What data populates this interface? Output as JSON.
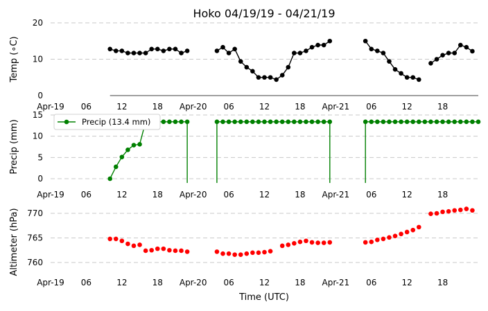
{
  "chart_data": {
    "title": "Hoko 04/19/19 - 04/21/19",
    "xlabel": "Time (UTC)",
    "x_ticks": [
      "Apr-19",
      "06",
      "12",
      "18",
      "Apr-20",
      "06",
      "12",
      "18",
      "Apr-21",
      "06",
      "12",
      "18"
    ],
    "x_range_hours": [
      0,
      72
    ],
    "panels": [
      {
        "type": "line",
        "ylabel": "Temp (∘C)",
        "ylim": [
          0,
          20
        ],
        "yticks": [
          "0",
          "10",
          "20"
        ],
        "color": "#000000",
        "grid": true,
        "segments": [
          [
            [
              10,
              12.8
            ],
            [
              11,
              12.3
            ],
            [
              12,
              12.3
            ],
            [
              13,
              11.7
            ],
            [
              14,
              11.7
            ],
            [
              15,
              11.7
            ],
            [
              16,
              11.7
            ],
            [
              17,
              12.8
            ],
            [
              18,
              12.8
            ],
            [
              19,
              12.3
            ],
            [
              20,
              12.8
            ],
            [
              21,
              12.8
            ],
            [
              22,
              11.7
            ],
            [
              23,
              12.3
            ]
          ],
          [
            [
              28,
              12.3
            ],
            [
              29,
              13.3
            ],
            [
              30,
              11.7
            ],
            [
              31,
              12.8
            ],
            [
              32,
              9.4
            ],
            [
              33,
              7.8
            ],
            [
              34,
              6.7
            ],
            [
              35,
              5.0
            ],
            [
              36,
              5.0
            ],
            [
              37,
              5.0
            ],
            [
              38,
              4.4
            ],
            [
              39,
              5.6
            ],
            [
              40,
              7.8
            ],
            [
              41,
              11.7
            ],
            [
              42,
              11.7
            ],
            [
              43,
              12.3
            ],
            [
              44,
              13.3
            ],
            [
              45,
              13.9
            ],
            [
              46,
              13.9
            ],
            [
              47,
              15.0
            ]
          ],
          [
            [
              53,
              15.0
            ],
            [
              54,
              12.8
            ],
            [
              55,
              12.3
            ],
            [
              56,
              11.7
            ],
            [
              57,
              9.4
            ],
            [
              58,
              7.2
            ],
            [
              59,
              6.1
            ],
            [
              60,
              5.0
            ],
            [
              61,
              5.0
            ],
            [
              62,
              4.4
            ]
          ],
          [
            [
              64,
              8.9
            ],
            [
              65,
              10.0
            ],
            [
              66,
              11.1
            ],
            [
              67,
              11.7
            ],
            [
              68,
              11.7
            ],
            [
              69,
              13.9
            ],
            [
              70,
              13.3
            ],
            [
              71,
              12.2
            ]
          ]
        ]
      },
      {
        "type": "line",
        "ylabel": "Precip (mm)",
        "ylim": [
          -1,
          15
        ],
        "yticks": [
          "0",
          "5",
          "10",
          "15"
        ],
        "color": "#008000",
        "grid": true,
        "legend": "Precip (13.4 mm)",
        "legend_position": "top-left",
        "segments": [
          [
            [
              10,
              0.0
            ],
            [
              11,
              2.8
            ],
            [
              12,
              5.1
            ],
            [
              13,
              6.8
            ],
            [
              14,
              7.9
            ],
            [
              15,
              8.1
            ],
            [
              16,
              13.4
            ],
            [
              17,
              13.4
            ],
            [
              18,
              13.4
            ],
            [
              19,
              13.4
            ],
            [
              20,
              13.4
            ],
            [
              21,
              13.4
            ],
            [
              22,
              13.4
            ],
            [
              23,
              13.4
            ],
            [
              23,
              -1
            ]
          ],
          [
            [
              28,
              -1
            ],
            [
              28,
              13.4
            ],
            [
              29,
              13.4
            ],
            [
              30,
              13.4
            ],
            [
              31,
              13.4
            ],
            [
              32,
              13.4
            ],
            [
              33,
              13.4
            ],
            [
              34,
              13.4
            ],
            [
              35,
              13.4
            ],
            [
              36,
              13.4
            ],
            [
              37,
              13.4
            ],
            [
              38,
              13.4
            ],
            [
              39,
              13.4
            ],
            [
              40,
              13.4
            ],
            [
              41,
              13.4
            ],
            [
              42,
              13.4
            ],
            [
              43,
              13.4
            ],
            [
              44,
              13.4
            ],
            [
              45,
              13.4
            ],
            [
              46,
              13.4
            ],
            [
              47,
              13.4
            ],
            [
              47,
              -1
            ]
          ],
          [
            [
              53,
              -1
            ],
            [
              53,
              13.4
            ],
            [
              54,
              13.4
            ],
            [
              55,
              13.4
            ],
            [
              56,
              13.4
            ],
            [
              57,
              13.4
            ],
            [
              58,
              13.4
            ],
            [
              59,
              13.4
            ],
            [
              60,
              13.4
            ],
            [
              61,
              13.4
            ],
            [
              62,
              13.4
            ],
            [
              63,
              13.4
            ],
            [
              64,
              13.4
            ],
            [
              65,
              13.4
            ],
            [
              66,
              13.4
            ],
            [
              67,
              13.4
            ],
            [
              68,
              13.4
            ],
            [
              69,
              13.4
            ],
            [
              70,
              13.4
            ],
            [
              71,
              13.4
            ],
            [
              72,
              13.4
            ]
          ]
        ]
      },
      {
        "type": "scatter",
        "ylabel": "Altimeter (hPa)",
        "ylim": [
          757,
          772.5
        ],
        "yticks": [
          "760",
          "765",
          "770"
        ],
        "color": "#ff0000",
        "grid": true,
        "points": [
          [
            10,
            764.8
          ],
          [
            11,
            764.8
          ],
          [
            12,
            764.4
          ],
          [
            13,
            763.8
          ],
          [
            14,
            763.4
          ],
          [
            15,
            763.6
          ],
          [
            16,
            762.4
          ],
          [
            17,
            762.5
          ],
          [
            18,
            762.8
          ],
          [
            19,
            762.8
          ],
          [
            20,
            762.5
          ],
          [
            21,
            762.4
          ],
          [
            22,
            762.4
          ],
          [
            23,
            762.2
          ],
          [
            28,
            762.2
          ],
          [
            29,
            761.8
          ],
          [
            30,
            761.8
          ],
          [
            31,
            761.6
          ],
          [
            32,
            761.6
          ],
          [
            33,
            761.8
          ],
          [
            34,
            762.0
          ],
          [
            35,
            762.0
          ],
          [
            36,
            762.1
          ],
          [
            37,
            762.3
          ],
          [
            39,
            763.4
          ],
          [
            40,
            763.6
          ],
          [
            41,
            763.9
          ],
          [
            42,
            764.2
          ],
          [
            43,
            764.4
          ],
          [
            44,
            764.1
          ],
          [
            45,
            764.0
          ],
          [
            46,
            764.0
          ],
          [
            47,
            764.1
          ],
          [
            53,
            764.1
          ],
          [
            54,
            764.2
          ],
          [
            55,
            764.6
          ],
          [
            56,
            764.8
          ],
          [
            57,
            765.1
          ],
          [
            58,
            765.4
          ],
          [
            59,
            765.8
          ],
          [
            60,
            766.2
          ],
          [
            61,
            766.6
          ],
          [
            62,
            767.2
          ],
          [
            64,
            769.9
          ],
          [
            65,
            770.0
          ],
          [
            66,
            770.3
          ],
          [
            67,
            770.4
          ],
          [
            68,
            770.6
          ],
          [
            69,
            770.7
          ],
          [
            70,
            770.9
          ],
          [
            71,
            770.6
          ]
        ]
      }
    ]
  }
}
